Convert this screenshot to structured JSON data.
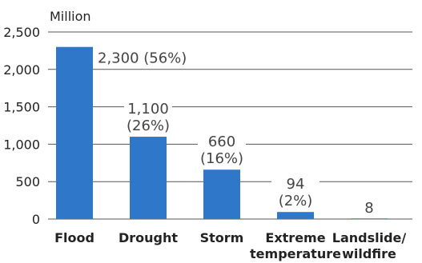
{
  "chart_data": {
    "type": "bar",
    "unit_label": "Million",
    "categories": [
      "Flood",
      "Drought",
      "Storm",
      "Extreme temperature",
      "Landslide/ wildfire"
    ],
    "category_lines": [
      [
        "Flood"
      ],
      [
        "Drought"
      ],
      [
        "Storm"
      ],
      [
        "Extreme",
        "temperature"
      ],
      [
        "Landslide/",
        "wildfire"
      ]
    ],
    "values": [
      2300,
      1100,
      660,
      94,
      8
    ],
    "value_labels": [
      [
        "2,300 (56%)"
      ],
      [
        "1,100",
        "(26%)"
      ],
      [
        "660",
        "(16%)"
      ],
      [
        "94",
        "(2%)"
      ],
      [
        "8"
      ]
    ],
    "yticks": [
      0,
      500,
      1000,
      1500,
      2000,
      2500
    ],
    "ytick_labels": [
      "0",
      "500",
      "1,000",
      "1,500",
      "2,000",
      "2,500"
    ],
    "ylim": [
      0,
      2500
    ],
    "grid": true,
    "bar_color": "#2f77c8"
  }
}
